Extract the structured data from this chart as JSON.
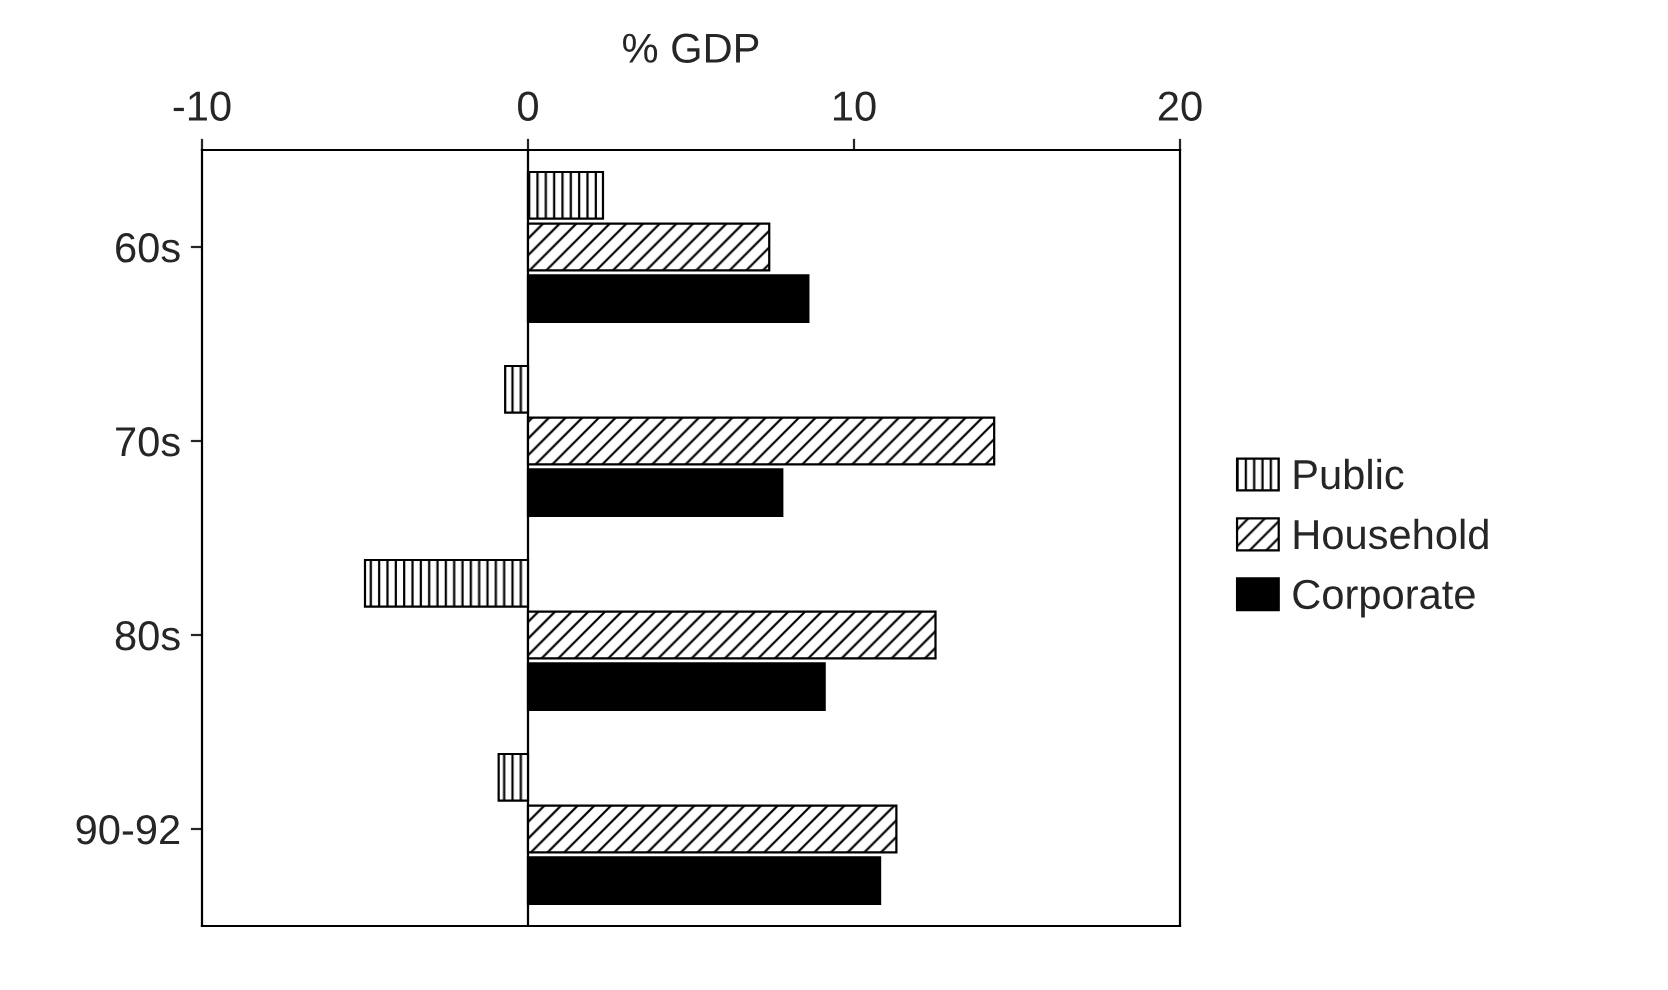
{
  "chart_data": {
    "type": "bar",
    "orientation": "horizontal",
    "xlabel": "% GDP",
    "categories": [
      "60s",
      "70s",
      "80s",
      "90-92"
    ],
    "series": [
      {
        "name": "Public",
        "color": "#000000",
        "values": [
          2.3,
          -0.7,
          -5.0,
          -0.9
        ]
      },
      {
        "name": "Household",
        "color": "#000000",
        "values": [
          7.4,
          14.3,
          12.5,
          11.3
        ]
      },
      {
        "name": "Corporate",
        "color": "#000000",
        "values": [
          8.6,
          7.8,
          9.1,
          10.8
        ]
      }
    ],
    "xlim": [
      -10,
      20
    ],
    "xticks": [
      -10,
      0,
      10,
      20
    ],
    "ref_lines": [
      {
        "axis": "x",
        "value": 0,
        "color": "#000000"
      }
    ],
    "grid": false,
    "legend": "right"
  }
}
